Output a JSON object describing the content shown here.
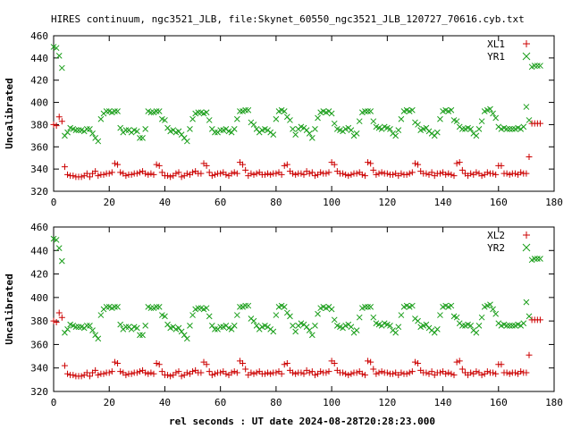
{
  "title": "HIRES continuum, ngc3521_JLB, file:Skynet_60550_ngc3521_JLB_120727_70616.cyb.txt",
  "xlabel": "rel seconds : UT date 2024-08-28T20:28:23.000",
  "colors": {
    "xl": "#cc0000",
    "yr": "#1a9e1a",
    "axis": "#000000"
  },
  "chart_data": [
    {
      "type": "scatter",
      "ylabel": "Uncalibrated",
      "xlim": [
        0,
        180
      ],
      "ylim": [
        320,
        460
      ],
      "xticks": [
        0,
        20,
        40,
        60,
        80,
        100,
        120,
        140,
        160,
        180
      ],
      "yticks": [
        320,
        340,
        360,
        380,
        400,
        420,
        440,
        460
      ],
      "grid": false,
      "legend": "top-right",
      "x": [
        0,
        1,
        2,
        3,
        4,
        5,
        6,
        7,
        8,
        9,
        10,
        11,
        12,
        13,
        14,
        15,
        16,
        17,
        18,
        19,
        20,
        21,
        22,
        23,
        24,
        25,
        26,
        27,
        28,
        29,
        30,
        31,
        32,
        33,
        34,
        35,
        36,
        37,
        38,
        39,
        40,
        41,
        42,
        43,
        44,
        45,
        46,
        47,
        48,
        49,
        50,
        51,
        52,
        53,
        54,
        55,
        56,
        57,
        58,
        59,
        60,
        61,
        62,
        63,
        64,
        65,
        66,
        67,
        68,
        69,
        70,
        71,
        72,
        73,
        74,
        75,
        76,
        77,
        78,
        79,
        80,
        81,
        82,
        83,
        84,
        85,
        86,
        87,
        88,
        89,
        90,
        91,
        92,
        93,
        94,
        95,
        96,
        97,
        98,
        99,
        100,
        101,
        102,
        103,
        104,
        105,
        106,
        107,
        108,
        109,
        110,
        111,
        112,
        113,
        114,
        115,
        116,
        117,
        118,
        119,
        120,
        121,
        122,
        123,
        124,
        125,
        126,
        127,
        128,
        129,
        130,
        131,
        132,
        133,
        134,
        135,
        136,
        137,
        138,
        139,
        140,
        141,
        142,
        143,
        144,
        145,
        146,
        147,
        148,
        149,
        150,
        151,
        152,
        153,
        154,
        155,
        156,
        157,
        158,
        159,
        160,
        161,
        162,
        163,
        164,
        165,
        166,
        167,
        168,
        169,
        170,
        171,
        172,
        173,
        174,
        175
      ],
      "series": [
        {
          "name": "XL1",
          "values": [
            380,
            379,
            387,
            383,
            342,
            335,
            334,
            334,
            333,
            333,
            333,
            334,
            336,
            333,
            336,
            338,
            334,
            335,
            335,
            336,
            336,
            337,
            345,
            344,
            337,
            336,
            334,
            335,
            335,
            336,
            336,
            337,
            338,
            336,
            335,
            336,
            335,
            344,
            343,
            337,
            334,
            334,
            333,
            334,
            336,
            337,
            333,
            334,
            336,
            335,
            337,
            338,
            336,
            336,
            345,
            343,
            337,
            334,
            335,
            336,
            336,
            337,
            335,
            334,
            336,
            337,
            336,
            346,
            344,
            339,
            334,
            336,
            335,
            336,
            337,
            335,
            335,
            336,
            335,
            336,
            336,
            337,
            335,
            343,
            344,
            338,
            336,
            335,
            336,
            336,
            335,
            338,
            336,
            337,
            334,
            335,
            337,
            336,
            336,
            337,
            346,
            344,
            338,
            336,
            336,
            335,
            334,
            335,
            336,
            336,
            337,
            335,
            334,
            346,
            345,
            339,
            335,
            336,
            337,
            336,
            336,
            335,
            335,
            336,
            334,
            336,
            335,
            335,
            336,
            337,
            345,
            344,
            338,
            336,
            336,
            335,
            337,
            334,
            336,
            336,
            337,
            335,
            336,
            335,
            334,
            345,
            346,
            339,
            336,
            334,
            336,
            335,
            337,
            336,
            334,
            335,
            337,
            336,
            336,
            335,
            343,
            343,
            336,
            336,
            335,
            336,
            336,
            335,
            337,
            336,
            336,
            351,
            381,
            381,
            381,
            381
          ]
        },
        {
          "name": "YR1",
          "values": [
            450,
            449,
            442,
            431,
            370,
            373,
            377,
            376,
            375,
            375,
            375,
            374,
            376,
            376,
            372,
            368,
            365,
            385,
            390,
            392,
            392,
            391,
            392,
            392,
            377,
            373,
            375,
            375,
            373,
            375,
            374,
            368,
            368,
            376,
            392,
            391,
            391,
            392,
            392,
            385,
            384,
            377,
            374,
            375,
            373,
            374,
            371,
            368,
            365,
            376,
            385,
            390,
            391,
            391,
            390,
            391,
            384,
            376,
            373,
            373,
            375,
            375,
            376,
            374,
            373,
            376,
            385,
            392,
            392,
            393,
            393,
            382,
            380,
            376,
            373,
            375,
            376,
            375,
            373,
            371,
            385,
            392,
            393,
            392,
            387,
            384,
            376,
            371,
            376,
            378,
            377,
            375,
            372,
            368,
            376,
            386,
            391,
            392,
            391,
            392,
            390,
            381,
            376,
            375,
            374,
            376,
            377,
            375,
            370,
            372,
            383,
            391,
            392,
            392,
            392,
            383,
            378,
            377,
            376,
            378,
            377,
            376,
            372,
            370,
            375,
            385,
            392,
            393,
            392,
            393,
            382,
            380,
            375,
            376,
            377,
            374,
            372,
            370,
            373,
            385,
            392,
            393,
            392,
            393,
            384,
            383,
            378,
            376,
            376,
            377,
            376,
            372,
            370,
            376,
            383,
            392,
            393,
            394,
            390,
            386,
            378,
            376,
            377,
            376,
            376,
            376,
            376,
            377,
            376,
            378,
            396,
            384,
            432,
            433,
            433,
            433
          ]
        }
      ]
    },
    {
      "type": "scatter",
      "ylabel": "Uncalibrated",
      "xlim": [
        0,
        180
      ],
      "ylim": [
        320,
        460
      ],
      "xticks": [
        0,
        20,
        40,
        60,
        80,
        100,
        120,
        140,
        160,
        180
      ],
      "yticks": [
        320,
        340,
        360,
        380,
        400,
        420,
        440,
        460
      ],
      "grid": false,
      "legend": "top-right",
      "x": [
        0,
        1,
        2,
        3,
        4,
        5,
        6,
        7,
        8,
        9,
        10,
        11,
        12,
        13,
        14,
        15,
        16,
        17,
        18,
        19,
        20,
        21,
        22,
        23,
        24,
        25,
        26,
        27,
        28,
        29,
        30,
        31,
        32,
        33,
        34,
        35,
        36,
        37,
        38,
        39,
        40,
        41,
        42,
        43,
        44,
        45,
        46,
        47,
        48,
        49,
        50,
        51,
        52,
        53,
        54,
        55,
        56,
        57,
        58,
        59,
        60,
        61,
        62,
        63,
        64,
        65,
        66,
        67,
        68,
        69,
        70,
        71,
        72,
        73,
        74,
        75,
        76,
        77,
        78,
        79,
        80,
        81,
        82,
        83,
        84,
        85,
        86,
        87,
        88,
        89,
        90,
        91,
        92,
        93,
        94,
        95,
        96,
        97,
        98,
        99,
        100,
        101,
        102,
        103,
        104,
        105,
        106,
        107,
        108,
        109,
        110,
        111,
        112,
        113,
        114,
        115,
        116,
        117,
        118,
        119,
        120,
        121,
        122,
        123,
        124,
        125,
        126,
        127,
        128,
        129,
        130,
        131,
        132,
        133,
        134,
        135,
        136,
        137,
        138,
        139,
        140,
        141,
        142,
        143,
        144,
        145,
        146,
        147,
        148,
        149,
        150,
        151,
        152,
        153,
        154,
        155,
        156,
        157,
        158,
        159,
        160,
        161,
        162,
        163,
        164,
        165,
        166,
        167,
        168,
        169,
        170,
        171,
        172,
        173,
        174,
        175
      ],
      "series": [
        {
          "name": "XL2",
          "values": [
            380,
            379,
            387,
            383,
            342,
            335,
            334,
            334,
            333,
            333,
            333,
            334,
            336,
            333,
            336,
            338,
            334,
            335,
            335,
            336,
            336,
            337,
            345,
            344,
            337,
            336,
            334,
            335,
            335,
            336,
            336,
            337,
            338,
            336,
            335,
            336,
            335,
            344,
            343,
            337,
            334,
            334,
            333,
            334,
            336,
            337,
            333,
            334,
            336,
            335,
            337,
            338,
            336,
            336,
            345,
            343,
            337,
            334,
            335,
            336,
            336,
            337,
            335,
            334,
            336,
            337,
            336,
            346,
            344,
            339,
            334,
            336,
            335,
            336,
            337,
            335,
            335,
            336,
            335,
            336,
            336,
            337,
            335,
            343,
            344,
            338,
            336,
            335,
            336,
            336,
            335,
            338,
            336,
            337,
            334,
            335,
            337,
            336,
            336,
            337,
            346,
            344,
            338,
            336,
            336,
            335,
            334,
            335,
            336,
            336,
            337,
            335,
            334,
            346,
            345,
            339,
            335,
            336,
            337,
            336,
            336,
            335,
            335,
            336,
            334,
            336,
            335,
            335,
            336,
            337,
            345,
            344,
            338,
            336,
            336,
            335,
            337,
            334,
            336,
            336,
            337,
            335,
            336,
            335,
            334,
            345,
            346,
            339,
            336,
            334,
            336,
            335,
            337,
            336,
            334,
            335,
            337,
            336,
            336,
            335,
            343,
            343,
            336,
            336,
            335,
            336,
            336,
            335,
            337,
            336,
            336,
            351,
            381,
            381,
            381,
            381
          ]
        },
        {
          "name": "YR2",
          "values": [
            450,
            449,
            442,
            431,
            370,
            373,
            377,
            376,
            375,
            375,
            375,
            374,
            376,
            376,
            372,
            368,
            365,
            385,
            390,
            392,
            392,
            391,
            392,
            392,
            377,
            373,
            375,
            375,
            373,
            375,
            374,
            368,
            368,
            376,
            392,
            391,
            391,
            392,
            392,
            385,
            384,
            377,
            374,
            375,
            373,
            374,
            371,
            368,
            365,
            376,
            385,
            390,
            391,
            391,
            390,
            391,
            384,
            376,
            373,
            373,
            375,
            375,
            376,
            374,
            373,
            376,
            385,
            392,
            392,
            393,
            393,
            382,
            380,
            376,
            373,
            375,
            376,
            375,
            373,
            371,
            385,
            392,
            393,
            392,
            387,
            384,
            376,
            371,
            376,
            378,
            377,
            375,
            372,
            368,
            376,
            386,
            391,
            392,
            391,
            392,
            390,
            381,
            376,
            375,
            374,
            376,
            377,
            375,
            370,
            372,
            383,
            391,
            392,
            392,
            392,
            383,
            378,
            377,
            376,
            378,
            377,
            376,
            372,
            370,
            375,
            385,
            392,
            393,
            392,
            393,
            382,
            380,
            375,
            376,
            377,
            374,
            372,
            370,
            373,
            385,
            392,
            393,
            392,
            393,
            384,
            383,
            378,
            376,
            376,
            377,
            376,
            372,
            370,
            376,
            383,
            392,
            393,
            394,
            390,
            386,
            378,
            376,
            377,
            376,
            376,
            376,
            376,
            377,
            376,
            378,
            396,
            384,
            432,
            433,
            433,
            433
          ]
        }
      ]
    }
  ]
}
